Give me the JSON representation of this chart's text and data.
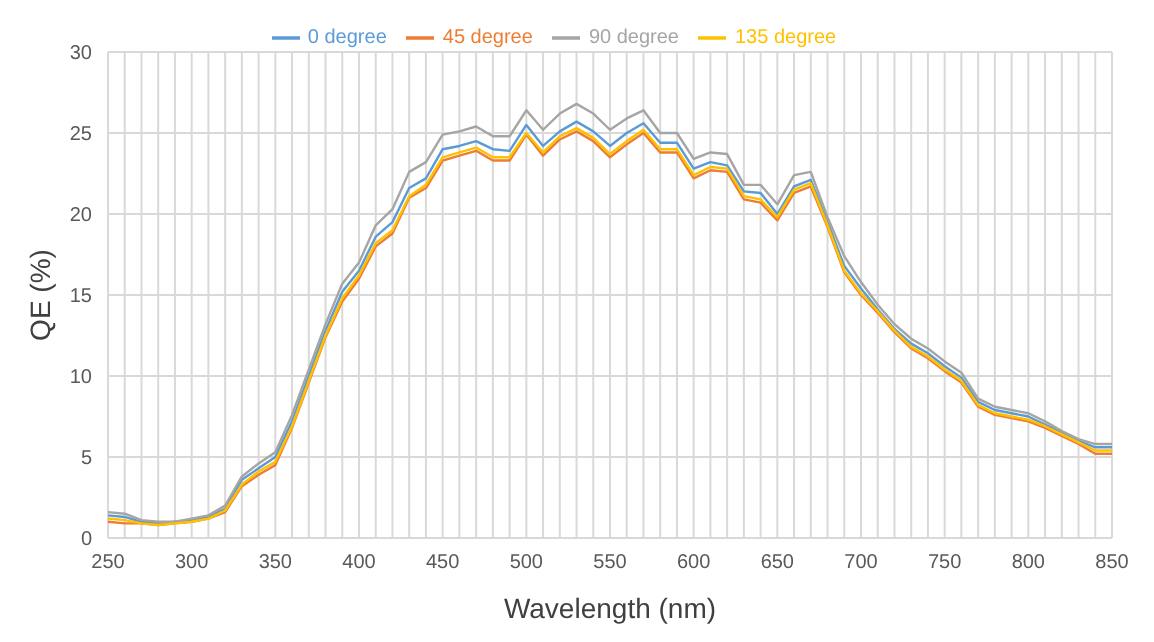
{
  "chart_data": {
    "type": "line",
    "xlabel": "Wavelength (nm)",
    "ylabel": "QE (%)",
    "x": [
      250,
      260,
      270,
      280,
      290,
      300,
      310,
      320,
      330,
      340,
      350,
      360,
      370,
      380,
      390,
      400,
      410,
      420,
      430,
      440,
      450,
      460,
      470,
      480,
      490,
      500,
      510,
      520,
      530,
      540,
      550,
      560,
      570,
      580,
      590,
      600,
      610,
      620,
      630,
      640,
      650,
      660,
      670,
      680,
      690,
      700,
      710,
      720,
      730,
      740,
      750,
      760,
      770,
      780,
      790,
      800,
      810,
      820,
      830,
      840,
      850
    ],
    "series": [
      {
        "name": "0 degree",
        "color": "#5b9bd5",
        "values": [
          1.4,
          1.3,
          1.0,
          0.9,
          1.0,
          1.1,
          1.3,
          1.8,
          3.6,
          4.3,
          5.0,
          7.2,
          10.0,
          12.8,
          15.2,
          16.5,
          18.6,
          19.5,
          21.6,
          22.2,
          24.0,
          24.2,
          24.5,
          24.0,
          23.9,
          25.5,
          24.2,
          25.1,
          25.7,
          25.1,
          24.2,
          25.0,
          25.6,
          24.4,
          24.4,
          22.8,
          23.2,
          23.0,
          21.4,
          21.3,
          20.0,
          21.7,
          22.1,
          19.5,
          16.8,
          15.4,
          14.1,
          12.9,
          12.0,
          11.4,
          10.6,
          9.9,
          8.4,
          7.9,
          7.7,
          7.5,
          7.0,
          6.5,
          6.0,
          5.6,
          5.6
        ]
      },
      {
        "name": "45 degree",
        "color": "#ed7d31",
        "values": [
          1.0,
          0.9,
          0.9,
          0.8,
          0.9,
          1.0,
          1.2,
          1.6,
          3.2,
          3.9,
          4.5,
          6.8,
          9.6,
          12.4,
          14.6,
          16.0,
          18.0,
          18.8,
          21.0,
          21.6,
          23.3,
          23.6,
          23.9,
          23.3,
          23.3,
          24.9,
          23.6,
          24.6,
          25.1,
          24.5,
          23.5,
          24.3,
          25.0,
          23.8,
          23.8,
          22.2,
          22.7,
          22.6,
          20.9,
          20.7,
          19.6,
          21.3,
          21.7,
          19.2,
          16.4,
          15.0,
          13.9,
          12.7,
          11.7,
          11.1,
          10.3,
          9.6,
          8.1,
          7.6,
          7.4,
          7.2,
          6.8,
          6.3,
          5.8,
          5.2,
          5.2
        ]
      },
      {
        "name": "90 degree",
        "color": "#a5a5a5",
        "values": [
          1.6,
          1.5,
          1.1,
          1.0,
          1.0,
          1.2,
          1.4,
          2.0,
          3.8,
          4.6,
          5.3,
          7.6,
          10.4,
          13.2,
          15.7,
          17.0,
          19.3,
          20.3,
          22.6,
          23.2,
          24.9,
          25.1,
          25.4,
          24.8,
          24.8,
          26.4,
          25.2,
          26.2,
          26.8,
          26.2,
          25.2,
          25.9,
          26.4,
          25.0,
          25.0,
          23.4,
          23.8,
          23.7,
          21.8,
          21.8,
          20.6,
          22.4,
          22.6,
          19.8,
          17.4,
          15.8,
          14.4,
          13.2,
          12.3,
          11.7,
          10.9,
          10.2,
          8.6,
          8.1,
          7.9,
          7.7,
          7.2,
          6.6,
          6.1,
          5.8,
          5.8
        ]
      },
      {
        "name": "135 degree",
        "color": "#ffc000",
        "values": [
          1.2,
          1.1,
          0.9,
          0.8,
          0.9,
          1.0,
          1.2,
          1.7,
          3.3,
          4.1,
          4.7,
          6.9,
          9.7,
          12.5,
          14.8,
          16.2,
          18.2,
          19.0,
          21.1,
          21.8,
          23.5,
          23.8,
          24.1,
          23.5,
          23.5,
          25.0,
          23.8,
          24.8,
          25.3,
          24.7,
          23.7,
          24.5,
          25.2,
          24.0,
          24.0,
          22.4,
          22.9,
          22.8,
          21.1,
          20.9,
          19.8,
          21.5,
          21.9,
          19.3,
          16.5,
          15.1,
          14.0,
          12.8,
          11.8,
          11.2,
          10.4,
          9.7,
          8.2,
          7.7,
          7.5,
          7.3,
          6.9,
          6.4,
          5.9,
          5.4,
          5.4
        ]
      }
    ],
    "xlim": [
      250,
      850
    ],
    "xticks": [
      250,
      {
        "value": 260,
        "label": null
      },
      {
        "value": 270,
        "label": null
      },
      {
        "value": 280,
        "label": null
      },
      {
        "value": 290,
        "label": null
      },
      300,
      {
        "value": 310,
        "label": null
      },
      {
        "value": 320,
        "label": null
      },
      {
        "value": 330,
        "label": null
      },
      {
        "value": 340,
        "label": null
      },
      350,
      {
        "value": 360,
        "label": null
      },
      {
        "value": 370,
        "label": null
      },
      {
        "value": 380,
        "label": null
      },
      {
        "value": 390,
        "label": null
      },
      400,
      {
        "value": 410,
        "label": null
      },
      {
        "value": 420,
        "label": null
      },
      {
        "value": 430,
        "label": null
      },
      {
        "value": 440,
        "label": null
      },
      450,
      {
        "value": 460,
        "label": null
      },
      {
        "value": 470,
        "label": null
      },
      {
        "value": 480,
        "label": null
      },
      {
        "value": 490,
        "label": null
      },
      500,
      {
        "value": 510,
        "label": null
      },
      {
        "value": 520,
        "label": null
      },
      {
        "value": 530,
        "label": null
      },
      {
        "value": 540,
        "label": null
      },
      550,
      {
        "value": 560,
        "label": null
      },
      {
        "value": 570,
        "label": null
      },
      {
        "value": 580,
        "label": null
      },
      {
        "value": 590,
        "label": null
      },
      600,
      {
        "value": 610,
        "label": null
      },
      {
        "value": 620,
        "label": null
      },
      {
        "value": 630,
        "label": null
      },
      {
        "value": 640,
        "label": null
      },
      650,
      {
        "value": 660,
        "label": null
      },
      {
        "value": 670,
        "label": null
      },
      {
        "value": 680,
        "label": null
      },
      {
        "value": 690,
        "label": null
      },
      700,
      {
        "value": 710,
        "label": null
      },
      {
        "value": 720,
        "label": null
      },
      {
        "value": 730,
        "label": null
      },
      {
        "value": 740,
        "label": null
      },
      750,
      {
        "value": 760,
        "label": null
      },
      {
        "value": 770,
        "label": null
      },
      {
        "value": 780,
        "label": null
      },
      {
        "value": 790,
        "label": null
      },
      800,
      {
        "value": 810,
        "label": null
      },
      {
        "value": 820,
        "label": null
      },
      {
        "value": 830,
        "label": null
      },
      {
        "value": 840,
        "label": null
      },
      850
    ],
    "ylim": [
      0,
      30
    ],
    "yticks": [
      0,
      5,
      10,
      15,
      20,
      25,
      30
    ],
    "grid": true,
    "legend": "top",
    "marker": "none",
    "line_style": "solid"
  }
}
